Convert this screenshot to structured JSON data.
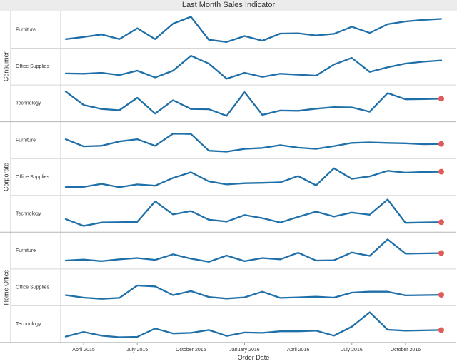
{
  "title": "Last Month Sales Indicator",
  "chart_data": {
    "type": "line",
    "title": "Last Month Sales Indicator",
    "xlabel": "Order Date",
    "ylabel": "",
    "grid": false,
    "line_color": "#1f6fa8",
    "marker_color": "#e05a5a",
    "x": [
      "2015-03",
      "2015-04",
      "2015-05",
      "2015-06",
      "2015-07",
      "2015-08",
      "2015-09",
      "2015-10",
      "2015-11",
      "2015-12",
      "2016-01",
      "2016-02",
      "2016-03",
      "2016-04",
      "2016-05",
      "2016-06",
      "2016-07",
      "2016-08",
      "2016-09",
      "2016-10",
      "2016-11",
      "2016-12"
    ],
    "x_ticks": [
      {
        "label": "April 2015",
        "at": "2015-04"
      },
      {
        "label": "July 2015",
        "at": "2015-07"
      },
      {
        "label": "October 2015",
        "at": "2015-10"
      },
      {
        "label": "January 2016",
        "at": "2016-01"
      },
      {
        "label": "April 2016",
        "at": "2016-04"
      },
      {
        "label": "July 2016",
        "at": "2016-07"
      },
      {
        "label": "October 2016",
        "at": "2016-10"
      }
    ],
    "segments": [
      {
        "name": "Consumer",
        "categories": [
          {
            "name": "Furniture",
            "last_marker": false,
            "values": [
              0.2,
              0.27,
              0.35,
              0.2,
              0.55,
              0.2,
              0.7,
              0.92,
              0.18,
              0.11,
              0.3,
              0.15,
              0.38,
              0.39,
              0.32,
              0.37,
              0.6,
              0.4,
              0.68,
              0.77,
              0.82,
              0.85
            ]
          },
          {
            "name": "Office Supplies",
            "last_marker": false,
            "values": [
              0.28,
              0.27,
              0.3,
              0.23,
              0.37,
              0.15,
              0.37,
              0.85,
              0.6,
              0.11,
              0.3,
              0.17,
              0.27,
              0.24,
              0.21,
              0.57,
              0.78,
              0.33,
              0.48,
              0.6,
              0.66,
              0.7
            ]
          },
          {
            "name": "Technology",
            "last_marker": true,
            "values": [
              0.88,
              0.45,
              0.32,
              0.28,
              0.68,
              0.17,
              0.6,
              0.32,
              0.31,
              0.1,
              0.86,
              0.13,
              0.27,
              0.26,
              0.33,
              0.38,
              0.37,
              0.23,
              0.83,
              0.63,
              0.64,
              0.65
            ]
          }
        ]
      },
      {
        "name": "Corporate",
        "categories": [
          {
            "name": "Furniture",
            "last_marker": true,
            "values": [
              0.53,
              0.3,
              0.32,
              0.46,
              0.53,
              0.32,
              0.71,
              0.7,
              0.16,
              0.13,
              0.22,
              0.25,
              0.34,
              0.26,
              0.22,
              0.31,
              0.41,
              0.43,
              0.41,
              0.4,
              0.37,
              0.38
            ]
          },
          {
            "name": "Office Supplies",
            "last_marker": true,
            "values": [
              0.18,
              0.18,
              0.28,
              0.17,
              0.26,
              0.22,
              0.47,
              0.65,
              0.36,
              0.26,
              0.3,
              0.31,
              0.33,
              0.53,
              0.23,
              0.78,
              0.44,
              0.52,
              0.7,
              0.64,
              0.66,
              0.67
            ]
          },
          {
            "name": "Technology",
            "last_marker": true,
            "values": [
              0.33,
              0.11,
              0.22,
              0.23,
              0.24,
              0.9,
              0.48,
              0.59,
              0.31,
              0.25,
              0.46,
              0.36,
              0.22,
              0.4,
              0.57,
              0.41,
              0.54,
              0.47,
              0.96,
              0.21,
              0.22,
              0.23
            ]
          }
        ]
      },
      {
        "name": "Home Office",
        "categories": [
          {
            "name": "Furniture",
            "last_marker": true,
            "values": [
              0.18,
              0.21,
              0.16,
              0.22,
              0.26,
              0.2,
              0.38,
              0.24,
              0.14,
              0.34,
              0.16,
              0.26,
              0.22,
              0.43,
              0.18,
              0.19,
              0.44,
              0.33,
              0.86,
              0.4,
              0.41,
              0.42
            ]
          },
          {
            "name": "Office Supplies",
            "last_marker": true,
            "values": [
              0.25,
              0.17,
              0.13,
              0.16,
              0.56,
              0.53,
              0.25,
              0.38,
              0.19,
              0.14,
              0.18,
              0.36,
              0.16,
              0.18,
              0.2,
              0.17,
              0.33,
              0.36,
              0.36,
              0.24,
              0.25,
              0.26
            ]
          },
          {
            "name": "Technology",
            "last_marker": true,
            "values": [
              0.1,
              0.25,
              0.13,
              0.08,
              0.09,
              0.36,
              0.2,
              0.22,
              0.31,
              0.12,
              0.23,
              0.22,
              0.27,
              0.27,
              0.29,
              0.13,
              0.42,
              0.88,
              0.32,
              0.29,
              0.3,
              0.31
            ]
          }
        ]
      }
    ]
  }
}
